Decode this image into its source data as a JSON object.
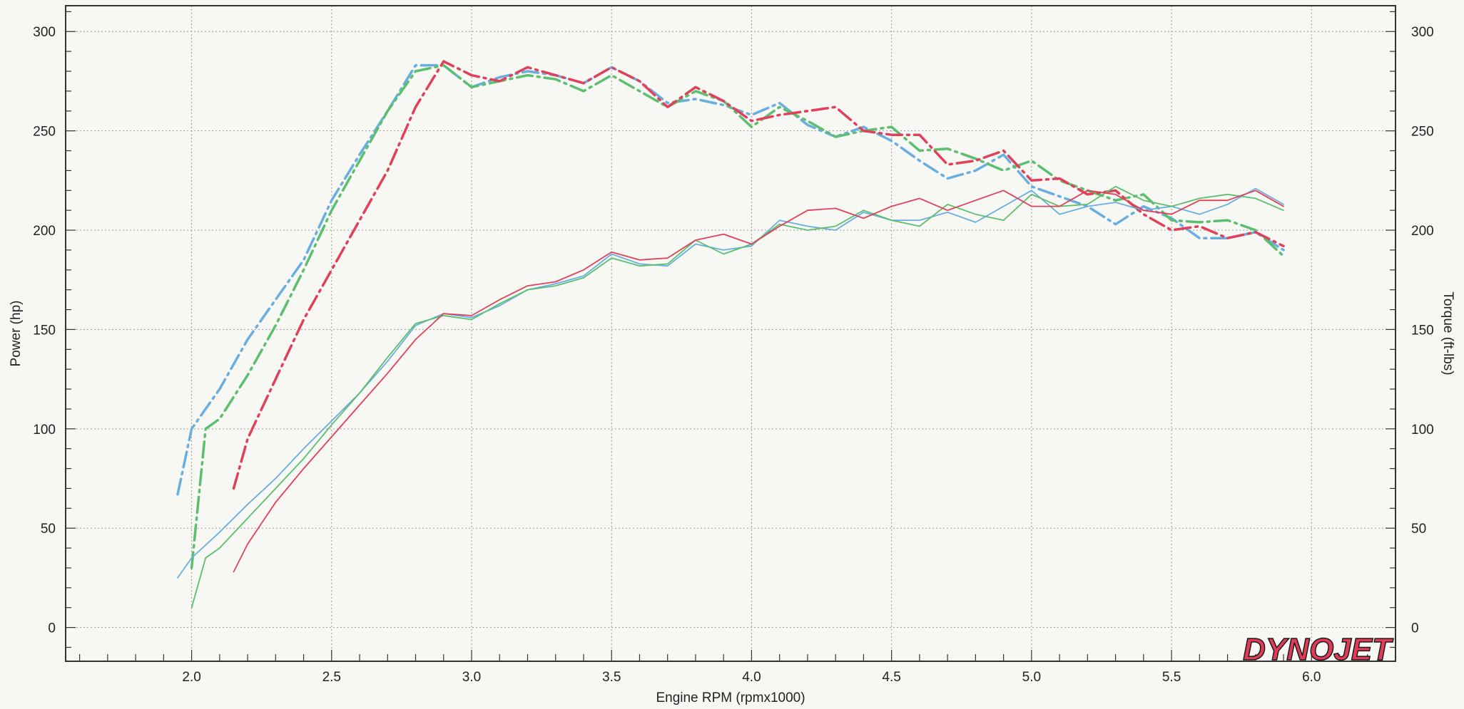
{
  "chart_data": {
    "type": "line",
    "title": "",
    "xlabel": "Engine RPM (rpmx1000)",
    "ylabel_left": "Power (hp)",
    "ylabel_right": "Torque (ft-lbs)",
    "xlim": [
      1.55,
      6.3
    ],
    "ylim": [
      -17,
      313
    ],
    "x_ticks": [
      "2.0",
      "2.5",
      "3.0",
      "3.5",
      "4.0",
      "4.5",
      "5.0",
      "5.5",
      "6.0"
    ],
    "x_tick_values": [
      2.0,
      2.5,
      3.0,
      3.5,
      4.0,
      4.5,
      5.0,
      5.5,
      6.0
    ],
    "y_ticks_left": [
      "0",
      "50",
      "100",
      "150",
      "200",
      "250",
      "300"
    ],
    "y_ticks_right": [
      "0",
      "50",
      "100",
      "150",
      "200",
      "250",
      "300"
    ],
    "grid": true,
    "logo_text": "DYNOJET",
    "colors": {
      "red": "#e0405a",
      "green": "#5bbf6e",
      "blue": "#6aaee0"
    },
    "series": [
      {
        "color": "#6aaee0",
        "dash": "dashdot",
        "points": [
          [
            1.95,
            67
          ],
          [
            2.0,
            100
          ],
          [
            2.1,
            120
          ],
          [
            2.2,
            145
          ],
          [
            2.3,
            165
          ],
          [
            2.4,
            185
          ],
          [
            2.5,
            215
          ],
          [
            2.6,
            238
          ],
          [
            2.7,
            260
          ],
          [
            2.8,
            283
          ],
          [
            2.9,
            283
          ],
          [
            3.0,
            272
          ],
          [
            3.1,
            277
          ],
          [
            3.2,
            280
          ],
          [
            3.3,
            278
          ],
          [
            3.4,
            274
          ],
          [
            3.5,
            282
          ],
          [
            3.6,
            275
          ],
          [
            3.7,
            264
          ],
          [
            3.8,
            266
          ],
          [
            3.9,
            263
          ],
          [
            4.0,
            258
          ],
          [
            4.1,
            264
          ],
          [
            4.2,
            253
          ],
          [
            4.3,
            247
          ],
          [
            4.4,
            252
          ],
          [
            4.5,
            245
          ],
          [
            4.6,
            235
          ],
          [
            4.7,
            226
          ],
          [
            4.8,
            230
          ],
          [
            4.9,
            238
          ],
          [
            5.0,
            222
          ],
          [
            5.1,
            217
          ],
          [
            5.2,
            212
          ],
          [
            5.3,
            203
          ],
          [
            5.4,
            212
          ],
          [
            5.5,
            206
          ],
          [
            5.6,
            196
          ],
          [
            5.7,
            196
          ],
          [
            5.8,
            199
          ],
          [
            5.9,
            190
          ]
        ]
      },
      {
        "color": "#5bbf6e",
        "dash": "dashdot",
        "points": [
          [
            2.0,
            30
          ],
          [
            2.05,
            100
          ],
          [
            2.1,
            105
          ],
          [
            2.2,
            127
          ],
          [
            2.3,
            152
          ],
          [
            2.4,
            180
          ],
          [
            2.5,
            210
          ],
          [
            2.6,
            235
          ],
          [
            2.7,
            260
          ],
          [
            2.8,
            280
          ],
          [
            2.9,
            283
          ],
          [
            3.0,
            272
          ],
          [
            3.1,
            275
          ],
          [
            3.2,
            278
          ],
          [
            3.3,
            276
          ],
          [
            3.4,
            270
          ],
          [
            3.5,
            278
          ],
          [
            3.6,
            270
          ],
          [
            3.7,
            262
          ],
          [
            3.8,
            270
          ],
          [
            3.9,
            265
          ],
          [
            4.0,
            252
          ],
          [
            4.1,
            262
          ],
          [
            4.2,
            255
          ],
          [
            4.3,
            247
          ],
          [
            4.4,
            250
          ],
          [
            4.5,
            252
          ],
          [
            4.6,
            240
          ],
          [
            4.7,
            241
          ],
          [
            4.8,
            236
          ],
          [
            4.9,
            230
          ],
          [
            5.0,
            235
          ],
          [
            5.1,
            225
          ],
          [
            5.2,
            220
          ],
          [
            5.3,
            215
          ],
          [
            5.4,
            218
          ],
          [
            5.5,
            205
          ],
          [
            5.6,
            204
          ],
          [
            5.7,
            205
          ],
          [
            5.8,
            200
          ],
          [
            5.9,
            187
          ]
        ]
      },
      {
        "color": "#e0405a",
        "dash": "dashdot",
        "points": [
          [
            2.15,
            70
          ],
          [
            2.2,
            95
          ],
          [
            2.3,
            125
          ],
          [
            2.4,
            155
          ],
          [
            2.5,
            180
          ],
          [
            2.6,
            205
          ],
          [
            2.7,
            230
          ],
          [
            2.8,
            262
          ],
          [
            2.9,
            285
          ],
          [
            3.0,
            278
          ],
          [
            3.1,
            275
          ],
          [
            3.2,
            282
          ],
          [
            3.3,
            278
          ],
          [
            3.4,
            274
          ],
          [
            3.5,
            282
          ],
          [
            3.6,
            275
          ],
          [
            3.7,
            262
          ],
          [
            3.8,
            272
          ],
          [
            3.9,
            265
          ],
          [
            4.0,
            255
          ],
          [
            4.1,
            258
          ],
          [
            4.2,
            260
          ],
          [
            4.3,
            262
          ],
          [
            4.4,
            250
          ],
          [
            4.5,
            248
          ],
          [
            4.6,
            248
          ],
          [
            4.7,
            233
          ],
          [
            4.8,
            235
          ],
          [
            4.9,
            240
          ],
          [
            5.0,
            225
          ],
          [
            5.1,
            226
          ],
          [
            5.2,
            218
          ],
          [
            5.3,
            220
          ],
          [
            5.4,
            208
          ],
          [
            5.5,
            200
          ],
          [
            5.6,
            202
          ],
          [
            5.7,
            196
          ],
          [
            5.8,
            199
          ],
          [
            5.9,
            192
          ]
        ]
      },
      {
        "color": "#6aaee0",
        "dash": "solid",
        "points": [
          [
            1.95,
            25
          ],
          [
            2.0,
            35
          ],
          [
            2.1,
            48
          ],
          [
            2.2,
            62
          ],
          [
            2.3,
            75
          ],
          [
            2.4,
            90
          ],
          [
            2.5,
            104
          ],
          [
            2.6,
            118
          ],
          [
            2.7,
            134
          ],
          [
            2.8,
            152
          ],
          [
            2.9,
            158
          ],
          [
            3.0,
            156
          ],
          [
            3.1,
            162
          ],
          [
            3.2,
            170
          ],
          [
            3.3,
            173
          ],
          [
            3.4,
            177
          ],
          [
            3.5,
            188
          ],
          [
            3.6,
            183
          ],
          [
            3.7,
            182
          ],
          [
            3.8,
            193
          ],
          [
            3.9,
            190
          ],
          [
            4.0,
            192
          ],
          [
            4.1,
            205
          ],
          [
            4.2,
            202
          ],
          [
            4.3,
            200
          ],
          [
            4.4,
            209
          ],
          [
            4.5,
            205
          ],
          [
            4.6,
            205
          ],
          [
            4.7,
            209
          ],
          [
            4.8,
            204
          ],
          [
            4.9,
            212
          ],
          [
            5.0,
            220
          ],
          [
            5.1,
            208
          ],
          [
            5.2,
            212
          ],
          [
            5.3,
            214
          ],
          [
            5.4,
            210
          ],
          [
            5.5,
            212
          ],
          [
            5.6,
            208
          ],
          [
            5.7,
            213
          ],
          [
            5.8,
            221
          ],
          [
            5.9,
            213
          ]
        ]
      },
      {
        "color": "#5bbf6e",
        "dash": "solid",
        "points": [
          [
            2.0,
            10
          ],
          [
            2.05,
            35
          ],
          [
            2.1,
            40
          ],
          [
            2.2,
            55
          ],
          [
            2.3,
            70
          ],
          [
            2.4,
            85
          ],
          [
            2.5,
            102
          ],
          [
            2.6,
            118
          ],
          [
            2.7,
            136
          ],
          [
            2.8,
            153
          ],
          [
            2.9,
            157
          ],
          [
            3.0,
            155
          ],
          [
            3.1,
            163
          ],
          [
            3.2,
            170
          ],
          [
            3.3,
            172
          ],
          [
            3.4,
            176
          ],
          [
            3.5,
            186
          ],
          [
            3.6,
            182
          ],
          [
            3.7,
            183
          ],
          [
            3.8,
            195
          ],
          [
            3.9,
            188
          ],
          [
            4.0,
            193
          ],
          [
            4.1,
            203
          ],
          [
            4.2,
            200
          ],
          [
            4.3,
            202
          ],
          [
            4.4,
            210
          ],
          [
            4.5,
            205
          ],
          [
            4.6,
            202
          ],
          [
            4.7,
            213
          ],
          [
            4.8,
            208
          ],
          [
            4.9,
            205
          ],
          [
            5.0,
            218
          ],
          [
            5.1,
            212
          ],
          [
            5.2,
            213
          ],
          [
            5.3,
            222
          ],
          [
            5.4,
            215
          ],
          [
            5.5,
            212
          ],
          [
            5.6,
            216
          ],
          [
            5.7,
            218
          ],
          [
            5.8,
            216
          ],
          [
            5.9,
            210
          ]
        ]
      },
      {
        "color": "#e0405a",
        "dash": "solid",
        "points": [
          [
            2.15,
            28
          ],
          [
            2.2,
            42
          ],
          [
            2.3,
            63
          ],
          [
            2.4,
            80
          ],
          [
            2.5,
            96
          ],
          [
            2.6,
            112
          ],
          [
            2.7,
            128
          ],
          [
            2.8,
            145
          ],
          [
            2.9,
            158
          ],
          [
            3.0,
            157
          ],
          [
            3.1,
            165
          ],
          [
            3.2,
            172
          ],
          [
            3.3,
            174
          ],
          [
            3.4,
            180
          ],
          [
            3.5,
            189
          ],
          [
            3.6,
            185
          ],
          [
            3.7,
            186
          ],
          [
            3.8,
            195
          ],
          [
            3.9,
            198
          ],
          [
            4.0,
            193
          ],
          [
            4.1,
            202
          ],
          [
            4.2,
            210
          ],
          [
            4.3,
            211
          ],
          [
            4.4,
            206
          ],
          [
            4.5,
            212
          ],
          [
            4.6,
            216
          ],
          [
            4.7,
            210
          ],
          [
            4.8,
            215
          ],
          [
            4.9,
            220
          ],
          [
            5.0,
            212
          ],
          [
            5.1,
            212
          ],
          [
            5.2,
            220
          ],
          [
            5.3,
            218
          ],
          [
            5.4,
            210
          ],
          [
            5.5,
            208
          ],
          [
            5.6,
            215
          ],
          [
            5.7,
            215
          ],
          [
            5.8,
            220
          ],
          [
            5.9,
            212
          ]
        ]
      }
    ]
  }
}
